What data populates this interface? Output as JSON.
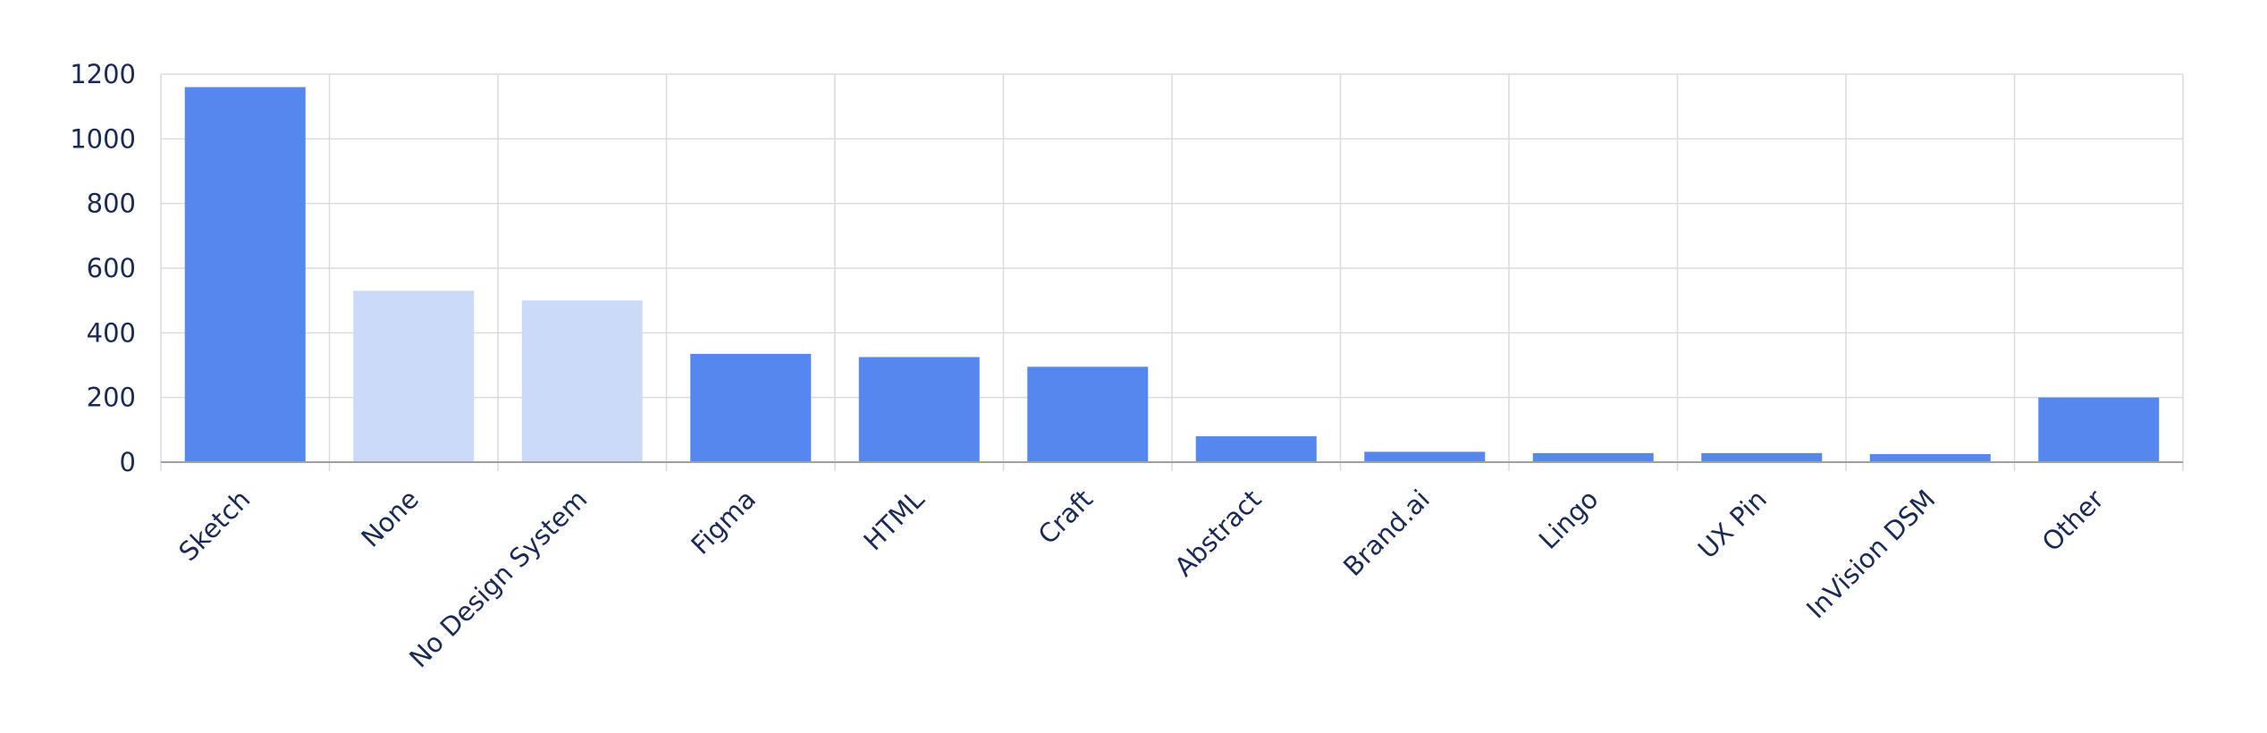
{
  "chart_data": {
    "type": "bar",
    "title": "",
    "xlabel": "",
    "ylabel": "",
    "ylim": [
      0,
      1200
    ],
    "yticks": [
      0,
      200,
      400,
      600,
      800,
      1000,
      1200
    ],
    "grid": true,
    "categories": [
      "Sketch",
      "None",
      "No Design System",
      "Figma",
      "HTML",
      "Craft",
      "Abstract",
      "Brand.ai",
      "Lingo",
      "UX Pin",
      "InVision DSM",
      "Other"
    ],
    "values": [
      1160,
      530,
      500,
      335,
      325,
      295,
      80,
      32,
      28,
      28,
      25,
      200
    ],
    "bar_colors": [
      "#5587ee",
      "#ccdaf9",
      "#ccdaf9",
      "#5587ee",
      "#5587ee",
      "#5587ee",
      "#5587ee",
      "#5587ee",
      "#5587ee",
      "#5587ee",
      "#5587ee",
      "#5587ee"
    ],
    "colors": {
      "primary": "#5587ee",
      "muted": "#ccdaf9",
      "grid": "#dcdcdc",
      "axis": "#a0a0a0",
      "text": "#1b2a55"
    }
  }
}
